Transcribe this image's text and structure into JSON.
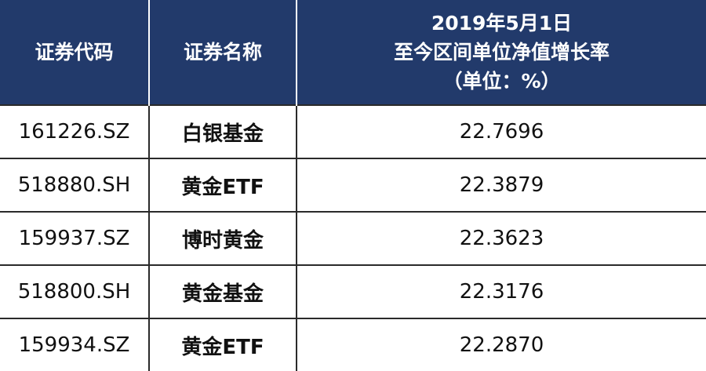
{
  "table": {
    "header": [
      "证券代码",
      "证券名称",
      [
        "2019年5月1日",
        "至今区间单位净值增长率",
        "（单位：%）"
      ]
    ],
    "rows": [
      [
        "161226.SZ",
        "白银基金",
        "22.7696"
      ],
      [
        "518880.SH",
        "黄金ETF",
        "22.3879"
      ],
      [
        "159937.SZ",
        "博时黄金",
        "22.3623"
      ],
      [
        "518800.SH",
        "黄金基金",
        "22.3176"
      ],
      [
        "159934.SZ",
        "黄金ETF",
        "22.2870"
      ]
    ]
  }
}
